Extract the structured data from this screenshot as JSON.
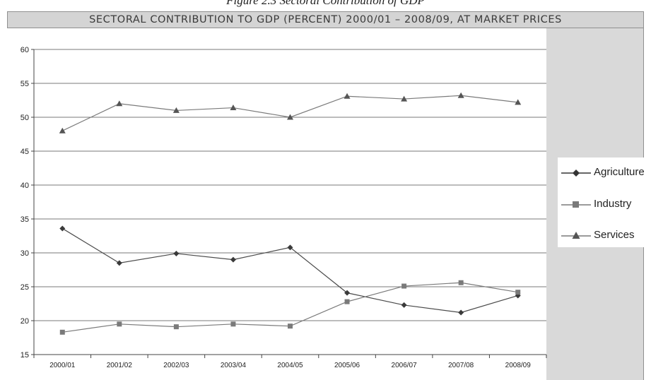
{
  "caption": "Figure 2.3 Sectoral Contribution of GDP",
  "chart_data": {
    "type": "line",
    "title": "SECTORAL CONTRIBUTION TO GDP (PERCENT) 2000/01 – 2008/09, AT MARKET PRICES",
    "categories": [
      "2000/01",
      "2001/02",
      "2002/03",
      "2003/04",
      "2004/05",
      "2005/06",
      "2006/07",
      "2007/08",
      "2008/09"
    ],
    "series": [
      {
        "name": "Agriculture",
        "marker": "diamond",
        "color": "#4a4a4a",
        "values": [
          33.6,
          28.5,
          29.9,
          29.0,
          30.8,
          24.1,
          22.3,
          21.2,
          23.7
        ]
      },
      {
        "name": "Industry",
        "marker": "square",
        "color": "#7a7a7a",
        "values": [
          18.3,
          19.5,
          19.1,
          19.5,
          19.2,
          22.8,
          25.1,
          25.6,
          24.2
        ]
      },
      {
        "name": "Services",
        "marker": "triangle",
        "color": "#7a7a7a",
        "values": [
          48.0,
          52.0,
          51.0,
          51.4,
          50.0,
          53.1,
          52.7,
          53.2,
          52.2
        ]
      }
    ],
    "y_ticks": [
      "60",
      "55",
      "50",
      "45",
      "40",
      "35",
      "30",
      "25",
      "20",
      "15"
    ],
    "ylim": [
      15,
      60
    ],
    "grid": true,
    "legend_position": "right"
  }
}
